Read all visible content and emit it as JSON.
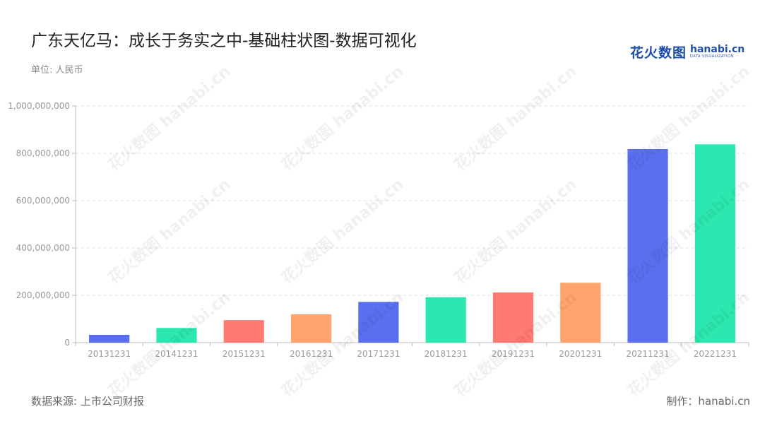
{
  "header": {
    "title": "广东天亿马：成长于务实之中-基础柱状图-数据可视化",
    "unit": "单位: 人民币"
  },
  "logo": {
    "cn": "花火数图",
    "en": "hanabi.cn",
    "sub": "DATA VISUALIZATION"
  },
  "footer": {
    "source": "数据来源: 上市公司财报",
    "credit": "制作：hanabi.cn"
  },
  "watermark": "花火数图 hanabi.cn",
  "colors": {
    "palette": [
      "#5a6fef",
      "#2ce8b0",
      "#ff7a70",
      "#ffa46c"
    ],
    "grid": "#dddddd",
    "axis": "#bbbbbb"
  },
  "chart_data": {
    "type": "bar",
    "title": "广东天亿马：成长于务实之中-基础柱状图-数据可视化",
    "xlabel": "",
    "ylabel": "",
    "categories": [
      "20131231",
      "20141231",
      "20151231",
      "20161231",
      "20171231",
      "20181231",
      "20191231",
      "20201231",
      "20211231",
      "20221231"
    ],
    "values": [
      33000000,
      62000000,
      95000000,
      120000000,
      172000000,
      192000000,
      212000000,
      253000000,
      818000000,
      838000000
    ],
    "ylim": [
      0,
      1000000000
    ],
    "yticks": [
      0,
      200000000,
      400000000,
      600000000,
      800000000,
      1000000000
    ],
    "ytick_labels": [
      "0",
      "200,000,000",
      "400,000,000",
      "600,000,000",
      "800,000,000",
      "1,000,000,000"
    ],
    "grid": true,
    "legend": "none"
  }
}
